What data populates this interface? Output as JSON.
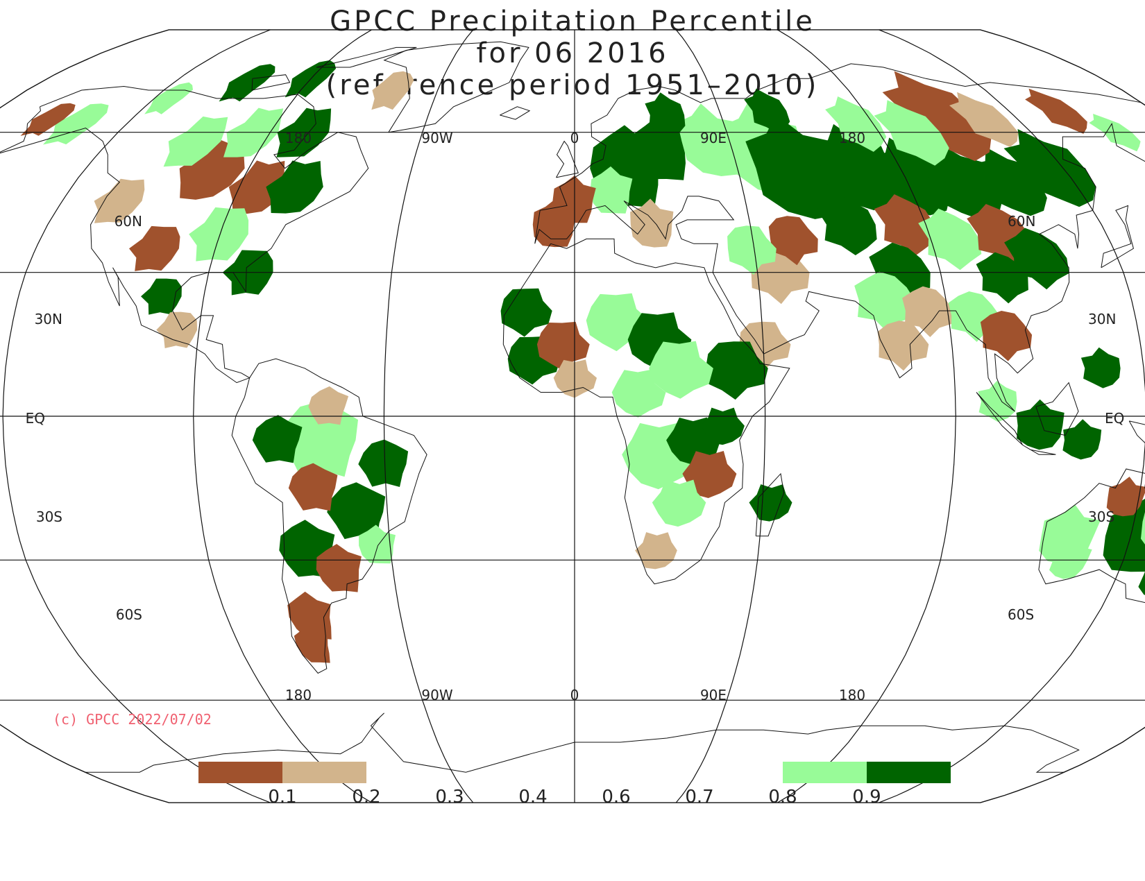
{
  "title": {
    "line1": "GPCC Precipitation Percentile",
    "line2": "for 06 2016",
    "line3": "(reference period 1951–2010)"
  },
  "map": {
    "projection": "Robinson",
    "center_longitude": 0,
    "top_labels": [
      "180",
      "90W",
      "0",
      "90E",
      "180"
    ],
    "bottom_labels": [
      "180",
      "90W",
      "0",
      "90E",
      "180"
    ],
    "lat_labels": [
      {
        "text": "60N",
        "lat": 60
      },
      {
        "text": "30N",
        "lat": 30
      },
      {
        "text": "EQ",
        "lat": 0
      },
      {
        "text": "30S",
        "lat": -30
      },
      {
        "text": "60S",
        "lat": -60
      }
    ]
  },
  "copyright": "(c) GPCC 2022/07/02",
  "legend": {
    "colors": {
      "very_dry": "#a0522d",
      "dry": "#d2b48c",
      "wet": "#98fb98",
      "very_wet": "#006400"
    },
    "tick_labels": [
      "0.1",
      "0.2",
      "0.3",
      "0.4",
      "0.6",
      "0.7",
      "0.8",
      "0.9"
    ]
  }
}
